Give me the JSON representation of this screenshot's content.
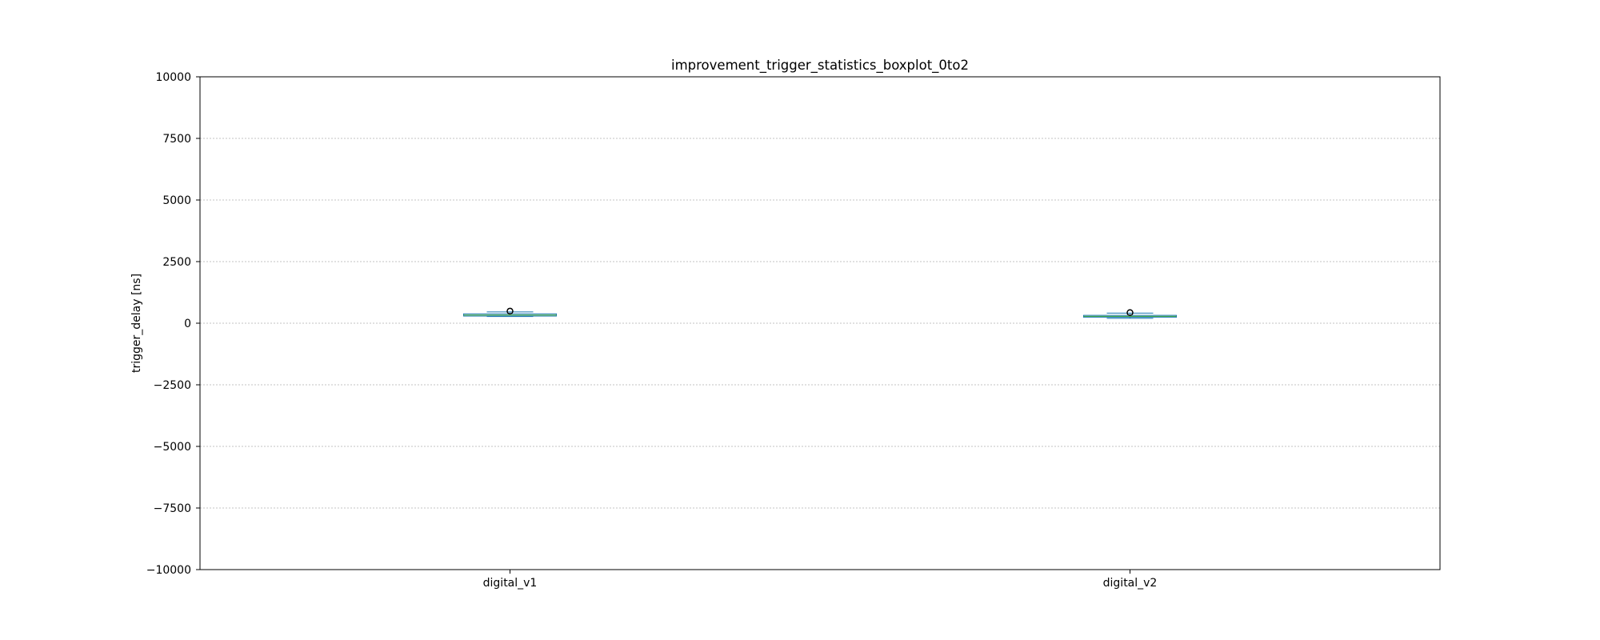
{
  "chart_data": {
    "type": "boxplot",
    "title": "improvement_trigger_statistics_boxplot_0to2",
    "xlabel": "",
    "ylabel": "trigger_delay [ns]",
    "ylim": [
      -10000,
      10000
    ],
    "yticks": [
      -10000,
      -7500,
      -5000,
      -2500,
      0,
      2500,
      5000,
      7500,
      10000
    ],
    "ytick_labels": [
      "−10000",
      "−7500",
      "−5000",
      "−2500",
      "0",
      "2500",
      "5000",
      "7500",
      "10000"
    ],
    "grid": "horizontal dotted",
    "categories": [
      "digital_v1",
      "digital_v2"
    ],
    "boxes": [
      {
        "label": "digital_v1",
        "whisker_low": 270,
        "q1": 290,
        "median": 330,
        "q3": 380,
        "whisker_high": 460,
        "fliers": [
          490
        ]
      },
      {
        "label": "digital_v2",
        "whisker_low": 200,
        "q1": 240,
        "median": 280,
        "q3": 320,
        "whisker_high": 410,
        "fliers": [
          430
        ]
      }
    ],
    "colors": {
      "box": "#1f77b4",
      "median": "#2ca02c",
      "whisker": "#1f77b4",
      "cap": "#1f77b4",
      "flier": "#000000",
      "grid": "#b0b0b0",
      "axes": "#000000"
    }
  }
}
